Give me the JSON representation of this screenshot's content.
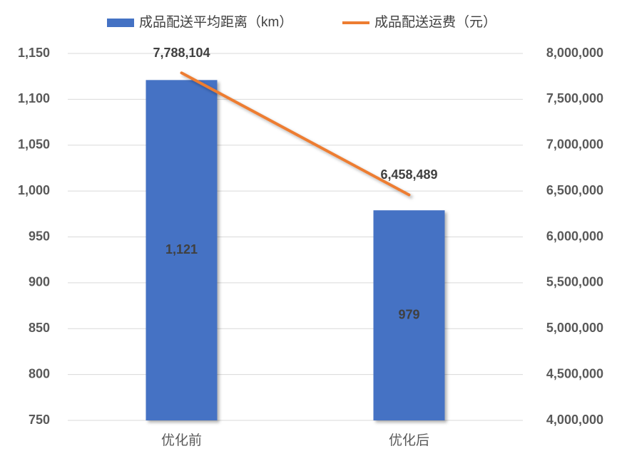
{
  "chart_data": {
    "type": "combo",
    "categories": [
      "优化前",
      "优化后"
    ],
    "series": [
      {
        "name": "成品配送平均距离（km）",
        "type": "bar",
        "color": "#4472c4",
        "values": [
          1121,
          979
        ],
        "value_labels": [
          "1,121",
          "979"
        ]
      },
      {
        "name": "成品配送运费（元）",
        "type": "line",
        "axis": "y2",
        "color": "#ed7d31",
        "values": [
          7788104,
          6458489
        ],
        "value_labels": [
          "7,788,104",
          "6,458,489"
        ]
      }
    ],
    "ylim": [
      750,
      1150
    ],
    "yticks": [
      750,
      800,
      850,
      900,
      950,
      {
        "value": 1000,
        "label": "1,000"
      },
      {
        "value": 1050,
        "label": "1,050"
      },
      {
        "value": 1100,
        "label": "1,100"
      },
      {
        "value": 1150,
        "label": "1,150"
      }
    ],
    "y2lim": [
      4000000,
      8000000
    ],
    "y2ticks": [
      {
        "value": 4000000,
        "label": "4,000,000"
      },
      {
        "value": 4500000,
        "label": "4,500,000"
      },
      {
        "value": 5000000,
        "label": "5,000,000"
      },
      {
        "value": 5500000,
        "label": "5,500,000"
      },
      {
        "value": 6000000,
        "label": "6,000,000"
      },
      {
        "value": 6500000,
        "label": "6,500,000"
      },
      {
        "value": 7000000,
        "label": "7,000,000"
      },
      {
        "value": 7500000,
        "label": "7,500,000"
      },
      {
        "value": 8000000,
        "label": "8,000,000"
      }
    ],
    "grid": true,
    "legend": "top"
  }
}
